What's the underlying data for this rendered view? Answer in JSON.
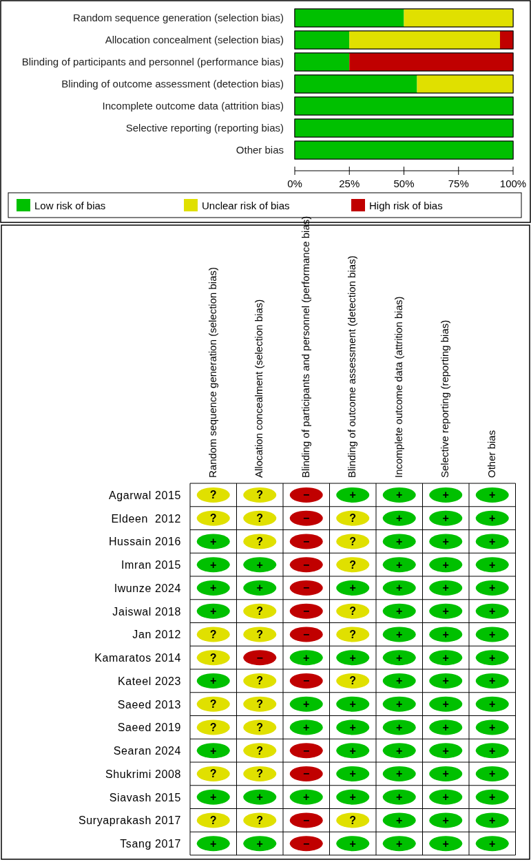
{
  "chart_data": [
    {
      "type": "bar",
      "orientation": "horizontal",
      "stacked": true,
      "categories": [
        "Random sequence generation (selection bias)",
        "Allocation concealment (selection bias)",
        "Blinding of participants and personnel (performance bias)",
        "Blinding of outcome assessment (detection bias)",
        "Incomplete outcome data (attrition bias)",
        "Selective reporting (reporting bias)",
        "Other bias"
      ],
      "series": [
        {
          "name": "Low risk of bias",
          "color": "#00c000",
          "values": [
            50,
            25,
            25,
            56,
            100,
            100,
            100
          ]
        },
        {
          "name": "Unclear risk of bias",
          "color": "#e0e000",
          "values": [
            50,
            69,
            0,
            44,
            0,
            0,
            0
          ]
        },
        {
          "name": "High risk of bias",
          "color": "#c00000",
          "values": [
            0,
            6,
            75,
            0,
            0,
            0,
            0
          ]
        }
      ],
      "xlim": [
        0,
        100
      ],
      "xticks": [
        {
          "value": 0,
          "label": "0%"
        },
        {
          "value": 25,
          "label": "25%"
        },
        {
          "value": 50,
          "label": "50%"
        },
        {
          "value": 75,
          "label": "75%"
        },
        {
          "value": 100,
          "label": "100%"
        }
      ],
      "legend": "bottom"
    },
    {
      "type": "heatmap",
      "categories": [
        "Random sequence generation (selection bias)",
        "Allocation concealment (selection bias)",
        "Blinding of participants and personnel (performance bias)",
        "Blinding of outcome assessment (detection bias)",
        "Incomplete outcome data (attrition bias)",
        "Selective reporting (reporting bias)",
        "Other bias"
      ],
      "y_categories": [
        "Agarwal 2015",
        "Eldeen  2012",
        "Hussain 2016",
        "Imran 2015",
        "Iwunze 2024",
        "Jaiswal 2018",
        "Jan 2012",
        "Kamaratos 2014",
        "Kateel 2023",
        "Saeed 2013",
        "Saeed 2019",
        "Searan 2024",
        "Shukrimi 2008",
        "Siavash 2015",
        "Suryaprakash 2017",
        "Tsang 2017"
      ],
      "cells": [
        [
          "?",
          "?",
          "−",
          "+",
          "+",
          "+",
          "+"
        ],
        [
          "?",
          "?",
          "−",
          "?",
          "+",
          "+",
          "+"
        ],
        [
          "+",
          "?",
          "−",
          "?",
          "+",
          "+",
          "+"
        ],
        [
          "+",
          "+",
          "−",
          "?",
          "+",
          "+",
          "+"
        ],
        [
          "+",
          "+",
          "−",
          "+",
          "+",
          "+",
          "+"
        ],
        [
          "+",
          "?",
          "−",
          "?",
          "+",
          "+",
          "+"
        ],
        [
          "?",
          "?",
          "−",
          "?",
          "+",
          "+",
          "+"
        ],
        [
          "?",
          "−",
          "+",
          "+",
          "+",
          "+",
          "+"
        ],
        [
          "+",
          "?",
          "−",
          "?",
          "+",
          "+",
          "+"
        ],
        [
          "?",
          "?",
          "+",
          "+",
          "+",
          "+",
          "+"
        ],
        [
          "?",
          "?",
          "+",
          "+",
          "+",
          "+",
          "+"
        ],
        [
          "+",
          "?",
          "−",
          "+",
          "+",
          "+",
          "+"
        ],
        [
          "?",
          "?",
          "−",
          "+",
          "+",
          "+",
          "+"
        ],
        [
          "+",
          "+",
          "+",
          "+",
          "+",
          "+",
          "+"
        ],
        [
          "?",
          "?",
          "−",
          "?",
          "+",
          "+",
          "+"
        ],
        [
          "+",
          "+",
          "−",
          "+",
          "+",
          "+",
          "+"
        ]
      ],
      "colors": [
        [
          "#e0e000",
          "#e0e000",
          "#c00000",
          "#00c000",
          "#00c000",
          "#00c000",
          "#00c000"
        ],
        [
          "#e0e000",
          "#e0e000",
          "#c00000",
          "#e0e000",
          "#00c000",
          "#00c000",
          "#00c000"
        ],
        [
          "#00c000",
          "#e0e000",
          "#c00000",
          "#e0e000",
          "#00c000",
          "#00c000",
          "#00c000"
        ],
        [
          "#00c000",
          "#00c000",
          "#c00000",
          "#e0e000",
          "#00c000",
          "#00c000",
          "#00c000"
        ],
        [
          "#00c000",
          "#00c000",
          "#c00000",
          "#00c000",
          "#00c000",
          "#00c000",
          "#00c000"
        ],
        [
          "#00c000",
          "#e0e000",
          "#c00000",
          "#e0e000",
          "#00c000",
          "#00c000",
          "#00c000"
        ],
        [
          "#e0e000",
          "#e0e000",
          "#c00000",
          "#e0e000",
          "#00c000",
          "#00c000",
          "#00c000"
        ],
        [
          "#e0e000",
          "#c00000",
          "#00c000",
          "#00c000",
          "#00c000",
          "#00c000",
          "#00c000"
        ],
        [
          "#00c000",
          "#e0e000",
          "#c00000",
          "#e0e000",
          "#00c000",
          "#00c000",
          "#00c000"
        ],
        [
          "#e0e000",
          "#e0e000",
          "#00c000",
          "#00c000",
          "#00c000",
          "#00c000",
          "#00c000"
        ],
        [
          "#e0e000",
          "#e0e000",
          "#00c000",
          "#00c000",
          "#00c000",
          "#00c000",
          "#00c000"
        ],
        [
          "#00c000",
          "#e0e000",
          "#c00000",
          "#00c000",
          "#00c000",
          "#00c000",
          "#00c000"
        ],
        [
          "#e0e000",
          "#e0e000",
          "#c00000",
          "#00c000",
          "#00c000",
          "#00c000",
          "#00c000"
        ],
        [
          "#00c000",
          "#00c000",
          "#00c000",
          "#00c000",
          "#00c000",
          "#00c000",
          "#00c000"
        ],
        [
          "#e0e000",
          "#e0e000",
          "#c00000",
          "#e0e000",
          "#00c000",
          "#00c000",
          "#00c000"
        ],
        [
          "#00c000",
          "#00c000",
          "#c00000",
          "#00c000",
          "#00c000",
          "#00c000",
          "#00c000"
        ]
      ]
    }
  ]
}
